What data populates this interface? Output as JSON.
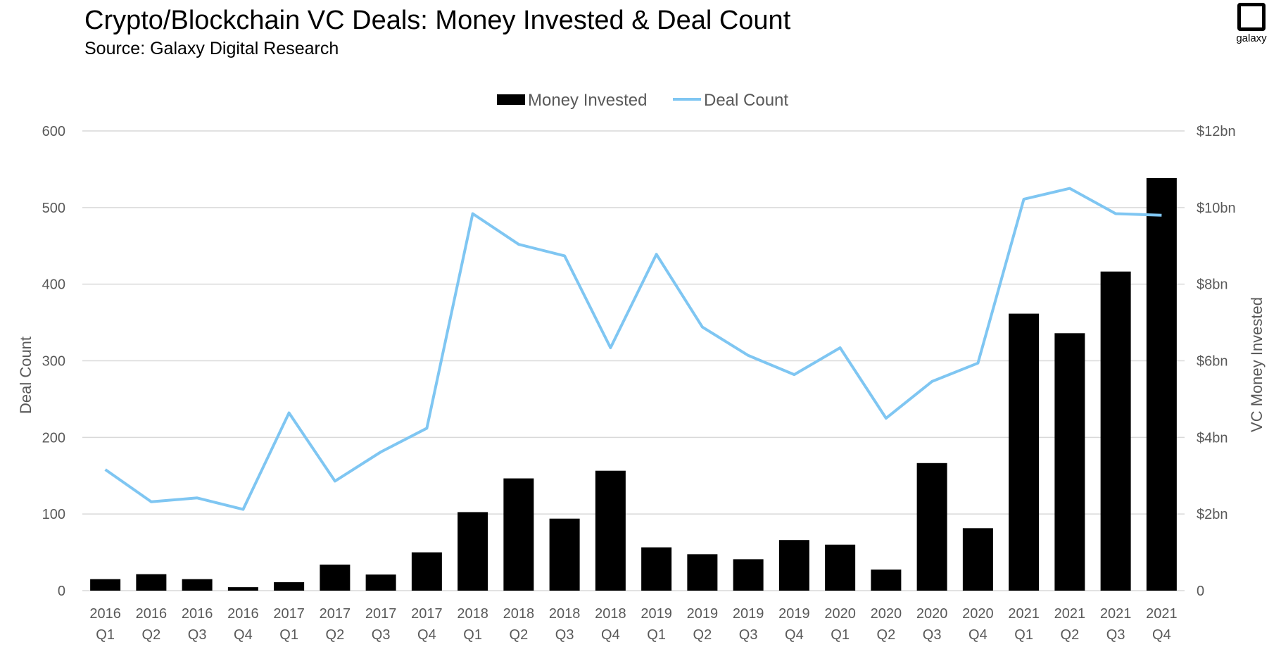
{
  "header": {
    "title": "Crypto/Blockchain VC Deals: Money Invested & Deal Count",
    "subtitle": "Source: Galaxy Digital Research"
  },
  "logo": {
    "text": "galaxy"
  },
  "colors": {
    "bars": "#000000",
    "line": "#7FC6F2",
    "grid": "#D9D9D9",
    "text": "#595959"
  },
  "chart_data": {
    "type": "bar",
    "legend": {
      "position": "top-center",
      "entries": [
        "Money Invested",
        "Deal Count"
      ]
    },
    "categories": [
      [
        "2016",
        "Q1"
      ],
      [
        "2016",
        "Q2"
      ],
      [
        "2016",
        "Q3"
      ],
      [
        "2016",
        "Q4"
      ],
      [
        "2017",
        "Q1"
      ],
      [
        "2017",
        "Q2"
      ],
      [
        "2017",
        "Q3"
      ],
      [
        "2017",
        "Q4"
      ],
      [
        "2018",
        "Q1"
      ],
      [
        "2018",
        "Q2"
      ],
      [
        "2018",
        "Q3"
      ],
      [
        "2018",
        "Q4"
      ],
      [
        "2019",
        "Q1"
      ],
      [
        "2019",
        "Q2"
      ],
      [
        "2019",
        "Q3"
      ],
      [
        "2019",
        "Q4"
      ],
      [
        "2020",
        "Q1"
      ],
      [
        "2020",
        "Q2"
      ],
      [
        "2020",
        "Q3"
      ],
      [
        "2020",
        "Q4"
      ],
      [
        "2021",
        "Q1"
      ],
      [
        "2021",
        "Q2"
      ],
      [
        "2021",
        "Q3"
      ],
      [
        "2021",
        "Q4"
      ]
    ],
    "series": [
      {
        "name": "Money Invested",
        "type": "bar",
        "axis": "right",
        "unit": "$bn",
        "values": [
          0.3,
          0.43,
          0.3,
          0.09,
          0.22,
          0.68,
          0.42,
          1.0,
          2.05,
          2.93,
          1.88,
          3.13,
          1.13,
          0.95,
          0.82,
          1.32,
          1.2,
          0.55,
          3.33,
          1.63,
          7.23,
          6.72,
          8.33,
          10.77
        ]
      },
      {
        "name": "Deal Count",
        "type": "line",
        "axis": "left",
        "values": [
          158,
          116,
          121,
          106,
          232,
          143,
          181,
          212,
          492,
          452,
          437,
          317,
          439,
          344,
          307,
          282,
          317,
          225,
          273,
          297,
          511,
          525,
          492,
          490
        ]
      }
    ],
    "y_left": {
      "label": "Deal Count",
      "range": [
        0,
        600
      ],
      "ticks": [
        "0",
        "100",
        "200",
        "300",
        "400",
        "500",
        "600"
      ]
    },
    "y_right": {
      "label": "VC Money Invested",
      "range": [
        0,
        12
      ],
      "ticks": [
        "0",
        "$2bn",
        "$4bn",
        "$6bn",
        "$8bn",
        "$10bn",
        "$12bn"
      ]
    },
    "grid": true
  }
}
